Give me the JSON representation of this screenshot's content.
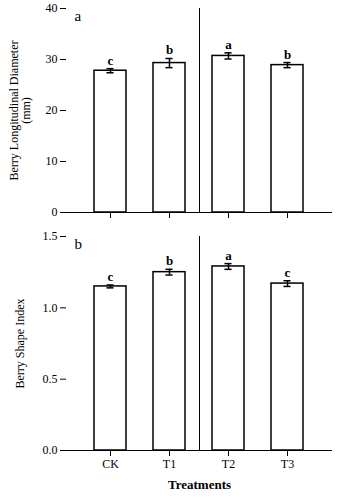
{
  "chart_data": [
    {
      "type": "bar",
      "panel_label": "a",
      "categories": [
        "CK",
        "T1",
        "T2",
        "T3"
      ],
      "values": [
        27.8,
        29.3,
        30.7,
        28.9
      ],
      "errors": [
        0.4,
        0.9,
        0.6,
        0.5
      ],
      "letters": [
        "c",
        "b",
        "a",
        "b"
      ],
      "ylabel": "Berry Longitudinal Diameter\n(mm)",
      "ylim": [
        0,
        40
      ],
      "yticks": [
        0,
        10,
        20,
        30,
        40
      ],
      "color": "#ffffff",
      "tick_labels": "y"
    },
    {
      "type": "bar",
      "panel_label": "b",
      "categories": [
        "CK",
        "T1",
        "T2",
        "T3"
      ],
      "values": [
        1.15,
        1.25,
        1.29,
        1.17
      ],
      "errors": [
        0.01,
        0.02,
        0.02,
        0.02
      ],
      "letters": [
        "c",
        "b",
        "a",
        "c"
      ],
      "ylabel": "Berry Shape Index",
      "xlabel": "Treatments",
      "ylim": [
        0.0,
        1.5
      ],
      "yticks": [
        {
          "value": 0,
          "label": "0.0"
        },
        0.5,
        {
          "value": 1,
          "label": "1.0"
        },
        1.5
      ],
      "color": "#ffffff"
    }
  ]
}
